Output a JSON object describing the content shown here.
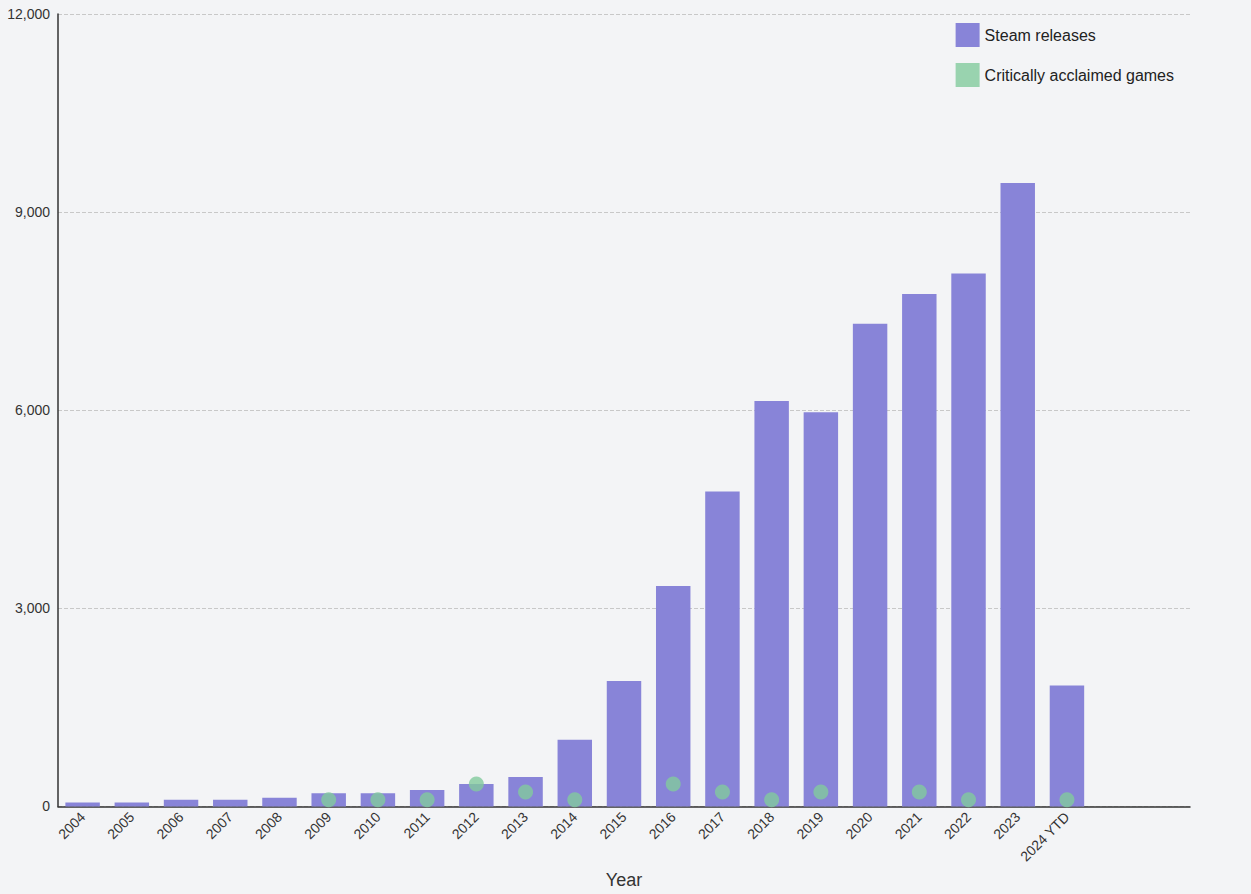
{
  "chart_data": {
    "type": "bar",
    "x_label": "Year",
    "categories": [
      "2004",
      "2005",
      "2006",
      "2007",
      "2008",
      "2009",
      "2010",
      "2011",
      "2012",
      "2013",
      "2014",
      "2015",
      "2016",
      "2017",
      "2018",
      "2019",
      "2020",
      "2021",
      "2022",
      "2023",
      "2024 YTD",
      null,
      null
    ],
    "series": [
      {
        "name": "Steam releases",
        "type": "bar",
        "color": "#8884d8",
        "values": [
          60,
          60,
          100,
          100,
          130,
          200,
          200,
          250,
          340,
          445,
          1010,
          1900,
          3340,
          4770,
          6140,
          5970,
          7310,
          7760,
          8070,
          9440,
          1830,
          null,
          null
        ]
      },
      {
        "name": "Critically acclaimed games",
        "type": "scatter",
        "color": "#82ca9d",
        "marker": "circle",
        "values": [
          null,
          null,
          null,
          null,
          null,
          100,
          100,
          100,
          340,
          220,
          100,
          null,
          340,
          220,
          100,
          220,
          null,
          220,
          100,
          null,
          100,
          null,
          null
        ]
      }
    ],
    "ylim": [
      0,
      12000
    ],
    "yticks": [
      0,
      {
        "value": 3000,
        "label": "3,000"
      },
      {
        "value": 6000,
        "label": "6,000"
      },
      {
        "value": 9000,
        "label": "9,000"
      },
      {
        "value": 12000,
        "label": "12,000"
      }
    ],
    "grid": true,
    "legend": "top-right"
  }
}
